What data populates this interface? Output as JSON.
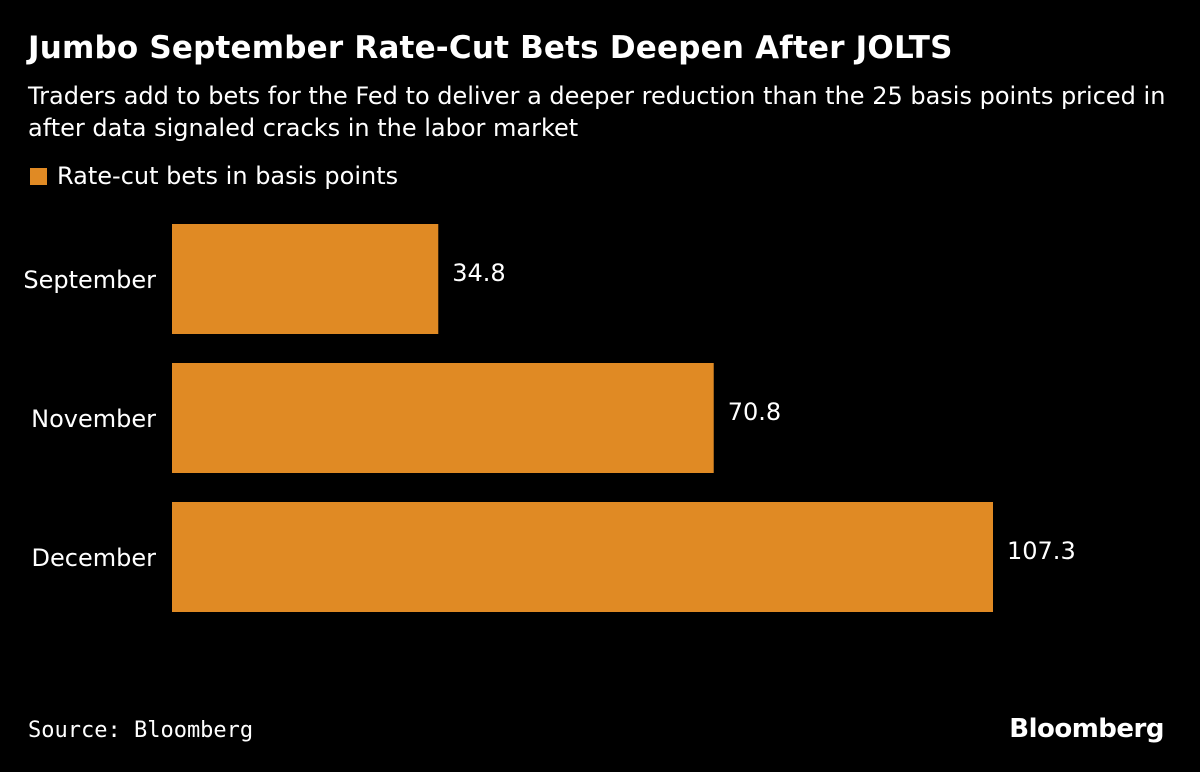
{
  "chart_data": {
    "type": "bar",
    "orientation": "horizontal",
    "title": "Jumbo September Rate-Cut Bets Deepen After JOLTS",
    "subtitle": "Traders add to bets for the Fed to deliver a deeper reduction than the 25 basis points priced in after data signaled cracks in the labor market",
    "categories": [
      "September",
      "November",
      "December"
    ],
    "series": [
      {
        "name": "Rate-cut bets in basis points",
        "values": [
          34.8,
          70.8,
          107.3
        ],
        "color": "#e08a24"
      }
    ],
    "data_labels": [
      "34.8",
      "70.8",
      "107.3"
    ],
    "xlim": [
      0,
      107.3
    ],
    "grid": false,
    "legend_position": "top-left"
  },
  "footer": {
    "source": "Source: Bloomberg",
    "brand": "Bloomberg"
  },
  "colors": {
    "background": "#000000",
    "text": "#ffffff",
    "bar": "#e08a24"
  }
}
